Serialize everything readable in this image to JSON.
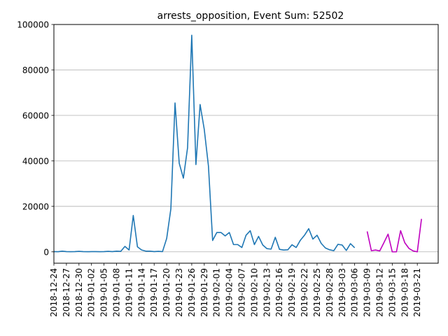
{
  "chart_data": {
    "type": "line",
    "title": "arrests_opposition, Event Sum: 52502",
    "xlabel": "",
    "ylabel": "",
    "ylim": [
      -5000,
      100000
    ],
    "yticks": [
      0,
      20000,
      40000,
      60000,
      80000,
      100000
    ],
    "ytick_labels": [
      "0",
      "20000",
      "40000",
      "60000",
      "80000",
      "100000"
    ],
    "grid": "horizontal",
    "x_start": "2018-12-24",
    "x_end": "2019-03-26",
    "xtick_labels": [
      "2018-12-24",
      "2018-12-27",
      "2018-12-30",
      "2019-01-02",
      "2019-01-05",
      "2019-01-08",
      "2019-01-11",
      "2019-01-14",
      "2019-01-17",
      "2019-01-20",
      "2019-01-23",
      "2019-01-26",
      "2019-01-29",
      "2019-02-01",
      "2019-02-04",
      "2019-02-07",
      "2019-02-10",
      "2019-02-13",
      "2019-02-16",
      "2019-02-19",
      "2019-02-22",
      "2019-02-25",
      "2019-02-28",
      "2019-03-03",
      "2019-03-06",
      "2019-03-09",
      "2019-03-12",
      "2019-03-15",
      "2019-03-18",
      "2019-03-21"
    ],
    "series": [
      {
        "color": "#1f77b4",
        "start": "2018-12-24",
        "values": [
          100,
          50,
          300,
          100,
          50,
          100,
          200,
          100,
          50,
          100,
          100,
          50,
          100,
          200,
          100,
          300,
          200,
          2400,
          800,
          16000,
          2200,
          800,
          300,
          300,
          100,
          200,
          100,
          5900,
          18900,
          65500,
          39000,
          32400,
          45800,
          95300,
          38400,
          64800,
          53800,
          37700,
          5000,
          8500,
          8500,
          7000,
          8500,
          3200,
          3200,
          1900,
          7300,
          9300,
          3200,
          6800,
          3000,
          1400,
          1200,
          6400,
          1100,
          800,
          900,
          3100,
          1900,
          5100,
          7300,
          10200,
          5600,
          7300,
          3700,
          1700,
          900,
          500,
          3300,
          3000,
          600,
          3600,
          1800
        ]
      },
      {
        "color": "#bf00bf",
        "start": "2019-03-09",
        "values": [
          9000,
          500,
          800,
          400,
          4000,
          7800,
          0,
          0,
          9300,
          4000,
          1500,
          400,
          0,
          14500
        ]
      }
    ]
  }
}
